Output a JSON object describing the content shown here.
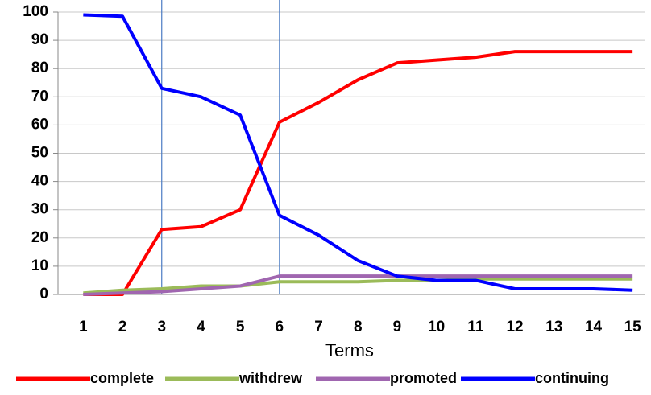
{
  "chart_data": {
    "type": "line",
    "x_label": "Terms",
    "categories": [
      "1",
      "2",
      "3",
      "4",
      "5",
      "6",
      "7",
      "8",
      "9",
      "10",
      "11",
      "12",
      "13",
      "14",
      "15"
    ],
    "series": [
      {
        "name": "complete",
        "color": "#ff0000",
        "values": [
          0,
          0,
          23,
          24,
          30,
          61,
          68,
          76,
          82,
          83,
          84,
          86,
          86,
          86,
          86
        ]
      },
      {
        "name": "withdrew",
        "color": "#9bbb59",
        "values": [
          0.5,
          1.5,
          2,
          3,
          3,
          4.5,
          4.5,
          4.5,
          5,
          5,
          5.5,
          5.5,
          5.5,
          5.5,
          5.5
        ]
      },
      {
        "name": "promoted",
        "color": "#a066b0",
        "values": [
          0,
          0.5,
          1,
          2,
          3,
          6.5,
          6.5,
          6.5,
          6.5,
          6.5,
          6.5,
          6.5,
          6.5,
          6.5,
          6.5
        ]
      },
      {
        "name": "continuing",
        "color": "#0000ff",
        "values": [
          99,
          98.5,
          73,
          70,
          63.5,
          28,
          21,
          12,
          6.5,
          5,
          5,
          2,
          2,
          2,
          1.5
        ]
      }
    ],
    "ylim": [
      0,
      100
    ],
    "yticks": [
      0,
      10,
      20,
      30,
      40,
      50,
      60,
      70,
      80,
      90,
      100
    ],
    "grid": true,
    "legend": "bottom"
  }
}
